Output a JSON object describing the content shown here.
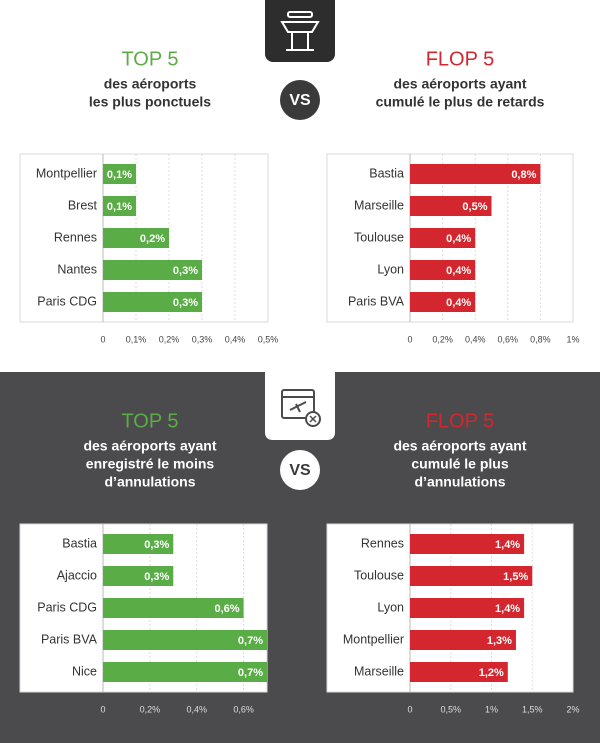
{
  "vs_labels": [
    "VS",
    "VS"
  ],
  "chart_data": [
    {
      "type": "bar",
      "orientation": "horizontal",
      "title": "TOP 5",
      "subtitle": [
        "des aéroports",
        "les plus ponctuels"
      ],
      "categories": [
        "Montpellier",
        "Brest",
        "Rennes",
        "Nantes",
        "Paris CDG"
      ],
      "values": [
        0.1,
        0.1,
        0.2,
        0.3,
        0.3
      ],
      "value_labels": [
        "0,1%",
        "0,1%",
        "0,2%",
        "0,3%",
        "0,3%"
      ],
      "color": "#5aad46",
      "xlim": [
        0,
        0.5
      ],
      "xticks": [
        0,
        {
          "value": 0.1,
          "label": "0,1%"
        },
        {
          "value": 0.2,
          "label": "0,2%"
        },
        {
          "value": 0.3,
          "label": "0,3%"
        },
        {
          "value": 0.4,
          "label": "0,4%"
        },
        {
          "value": 0.5,
          "label": "0,5%"
        }
      ],
      "grid": true
    },
    {
      "type": "bar",
      "orientation": "horizontal",
      "title": "FLOP 5",
      "subtitle": [
        "des aéroports ayant",
        "cumulé le plus de retards"
      ],
      "categories": [
        "Bastia",
        "Marseille",
        "Toulouse",
        "Lyon",
        "Paris BVA"
      ],
      "values": [
        0.8,
        0.5,
        0.4,
        0.4,
        0.4
      ],
      "value_labels": [
        "0,8%",
        "0,5%",
        "0,4%",
        "0,4%",
        "0,4%"
      ],
      "color": "#d3262e",
      "xlim": [
        0,
        1
      ],
      "xticks": [
        0,
        {
          "value": 0.2,
          "label": "0,2%"
        },
        {
          "value": 0.4,
          "label": "0,4%"
        },
        {
          "value": 0.6,
          "label": "0,6%"
        },
        {
          "value": 0.8,
          "label": "0,8%"
        },
        {
          "value": 1,
          "label": "1%"
        }
      ],
      "grid": true
    },
    {
      "type": "bar",
      "orientation": "horizontal",
      "title": "TOP 5",
      "subtitle": [
        "des aéroports ayant",
        "enregistré le moins",
        "d’annulations"
      ],
      "categories": [
        "Bastia",
        "Ajaccio",
        "Paris CDG",
        "Paris BVA",
        "Nice"
      ],
      "values": [
        0.3,
        0.3,
        0.6,
        0.7,
        0.7
      ],
      "value_labels": [
        "0,3%",
        "0,3%",
        "0,6%",
        "0,7%",
        "0,7%"
      ],
      "color": "#5aad46",
      "xlim": [
        0,
        0.7
      ],
      "xticks": [
        0,
        {
          "value": 0.2,
          "label": "0,2%"
        },
        {
          "value": 0.4,
          "label": "0,4%"
        },
        {
          "value": 0.6,
          "label": "0,6%"
        }
      ],
      "grid": true
    },
    {
      "type": "bar",
      "orientation": "horizontal",
      "title": "FLOP 5",
      "subtitle": [
        "des aéroports ayant",
        "cumulé le plus",
        "d’annulations"
      ],
      "categories": [
        "Rennes",
        "Toulouse",
        "Lyon",
        "Montpellier",
        "Marseille"
      ],
      "values": [
        1.4,
        1.5,
        1.4,
        1.3,
        1.2
      ],
      "value_labels": [
        "1,4%",
        "1,5%",
        "1,4%",
        "1,3%",
        "1,2%"
      ],
      "color": "#d3262e",
      "xlim": [
        0,
        2
      ],
      "xticks": [
        0,
        {
          "value": 0.5,
          "label": "0,5%"
        },
        {
          "value": 1,
          "label": "1%"
        },
        {
          "value": 1.5,
          "label": "1,5%"
        },
        {
          "value": 2,
          "label": "2%"
        }
      ],
      "grid": true
    }
  ]
}
